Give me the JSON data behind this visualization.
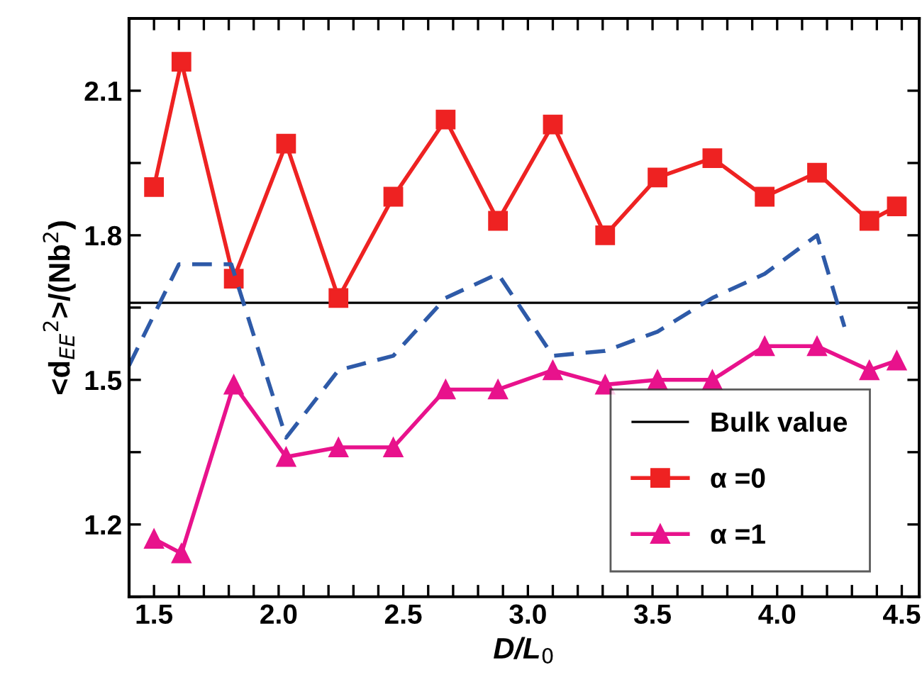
{
  "chart_data": {
    "type": "line",
    "xlabel": "D/L$_{0}$",
    "ylabel": "<d$_{EE}$$^{2}$>/(Nb$^{2}$)",
    "xlim": [
      1.4,
      4.57
    ],
    "ylim": [
      1.05,
      2.25
    ],
    "xticks": [
      1.5,
      {
        "value": 1.6,
        "label": null
      },
      {
        "value": 1.7,
        "label": null
      },
      {
        "value": 1.8,
        "label": null
      },
      {
        "value": 1.9,
        "label": null
      },
      {
        "value": 2.0,
        "label": "2.0"
      },
      {
        "value": 2.1,
        "label": null
      },
      {
        "value": 2.2,
        "label": null
      },
      {
        "value": 2.3,
        "label": null
      },
      {
        "value": 2.4,
        "label": null
      },
      2.5,
      {
        "value": 2.6,
        "label": null
      },
      {
        "value": 2.7,
        "label": null
      },
      {
        "value": 2.8,
        "label": null
      },
      {
        "value": 2.9,
        "label": null
      },
      {
        "value": 3.0,
        "label": "3.0"
      },
      {
        "value": 3.1,
        "label": null
      },
      {
        "value": 3.2,
        "label": null
      },
      {
        "value": 3.3,
        "label": null
      },
      {
        "value": 3.4,
        "label": null
      },
      3.5,
      {
        "value": 3.6,
        "label": null
      },
      {
        "value": 3.7,
        "label": null
      },
      {
        "value": 3.8,
        "label": null
      },
      {
        "value": 3.9,
        "label": null
      },
      {
        "value": 4.0,
        "label": "4.0"
      },
      {
        "value": 4.1,
        "label": null
      },
      {
        "value": 4.2,
        "label": null
      },
      {
        "value": 4.3,
        "label": null
      },
      {
        "value": 4.4,
        "label": null
      },
      4.5
    ],
    "yticks": [
      {
        "value": 1.05,
        "label": null
      },
      1.2,
      {
        "value": 1.35,
        "label": null
      },
      1.5,
      {
        "value": 1.65,
        "label": null
      },
      1.8,
      {
        "value": 1.95,
        "label": null
      },
      2.1,
      {
        "value": 2.25,
        "label": null
      }
    ],
    "grid": false,
    "legend": "bottom right",
    "ref_lines": [
      {
        "axis": "y",
        "value": 1.66,
        "label": "Bulk value",
        "color": "#000000",
        "line_style": "solid"
      }
    ],
    "series": [
      {
        "name": "α =0",
        "color": "#ee2222",
        "marker": "square",
        "line_style": "solid",
        "x": [
          1.5,
          1.61,
          1.82,
          2.03,
          2.24,
          2.46,
          2.67,
          2.88,
          3.1,
          3.31,
          3.52,
          3.74,
          3.95,
          4.16,
          4.37,
          4.48
        ],
        "values": [
          1.9,
          2.16,
          1.71,
          1.99,
          1.67,
          1.88,
          2.04,
          1.83,
          2.03,
          1.8,
          1.92,
          1.96,
          1.88,
          1.93,
          1.83,
          1.86
        ]
      },
      {
        "name": "α =1",
        "color": "#e8128c",
        "marker": "triangle",
        "line_style": "solid",
        "x": [
          1.5,
          1.61,
          1.82,
          2.03,
          2.24,
          2.46,
          2.67,
          2.88,
          3.1,
          3.31,
          3.52,
          3.74,
          3.95,
          4.16,
          4.37,
          4.48
        ],
        "values": [
          1.17,
          1.14,
          1.49,
          1.34,
          1.36,
          1.36,
          1.48,
          1.48,
          1.52,
          1.49,
          1.5,
          1.5,
          1.57,
          1.57,
          1.52,
          1.54
        ]
      },
      {
        "color": "#2e5aa8",
        "marker": "none",
        "line_style": "dashed",
        "x": [
          1.4,
          1.6,
          1.81,
          2.03,
          2.24,
          2.46,
          2.67,
          2.88,
          3.1,
          3.31,
          3.52,
          3.74,
          3.95,
          4.16,
          4.27
        ],
        "values": [
          1.53,
          1.74,
          1.74,
          1.38,
          1.52,
          1.55,
          1.67,
          1.72,
          1.55,
          1.56,
          1.6,
          1.67,
          1.72,
          1.8,
          1.61
        ]
      }
    ]
  }
}
